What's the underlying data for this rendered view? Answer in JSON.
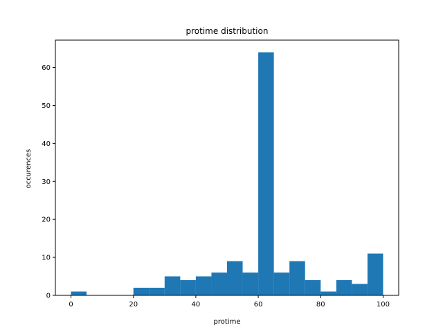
{
  "chart_data": {
    "type": "bar",
    "title": "protime distribution",
    "xlabel": "protime",
    "ylabel": "occurences",
    "xlim": [
      -5,
      105
    ],
    "ylim": [
      0,
      67.2
    ],
    "xticks": [
      0,
      20,
      40,
      60,
      80,
      100
    ],
    "yticks": [
      0,
      10,
      20,
      30,
      40,
      50,
      60
    ],
    "grid": false,
    "bar_color": "#1f77b4",
    "bin_edges": [
      0,
      5,
      10,
      15,
      20,
      25,
      30,
      35,
      40,
      45,
      50,
      55,
      60,
      65,
      70,
      75,
      80,
      85,
      90,
      95,
      100
    ],
    "values": [
      1,
      0,
      0,
      0,
      2,
      2,
      5,
      4,
      5,
      6,
      9,
      6,
      64,
      6,
      9,
      4,
      1,
      4,
      3,
      11
    ]
  }
}
